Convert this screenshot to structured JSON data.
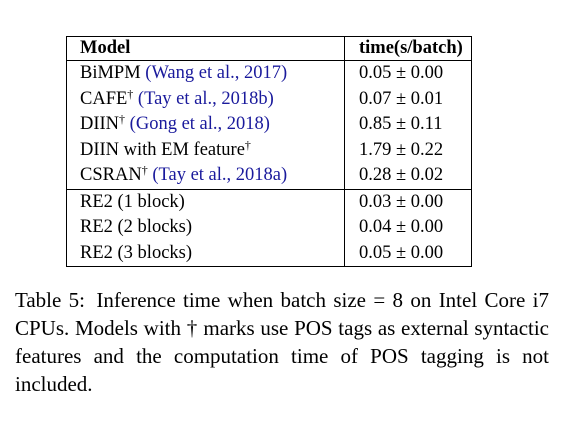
{
  "table": {
    "header": {
      "model": "Model",
      "time": "time(s/batch)"
    },
    "rows": [
      {
        "name": "BiMPM",
        "dagger": "",
        "cite": "(Wang et al., 2017)",
        "time": "0.05 ± 0.00"
      },
      {
        "name": "CAFE",
        "dagger": "†",
        "cite": "(Tay et al., 2018b)",
        "time": "0.07 ± 0.01"
      },
      {
        "name": "DIIN",
        "dagger": "†",
        "cite": "(Gong et al., 2018)",
        "time": "0.85 ± 0.11"
      },
      {
        "name": "DIIN with EM feature",
        "dagger": "†",
        "cite": "",
        "time": "1.79 ± 0.22"
      },
      {
        "name": "CSRAN",
        "dagger": "†",
        "cite": "(Tay et al., 2018a)",
        "time": "0.28 ± 0.02"
      },
      {
        "name": "RE2 (1 block)",
        "dagger": "",
        "cite": "",
        "time": "0.03 ± 0.00"
      },
      {
        "name": "RE2 (2 blocks)",
        "dagger": "",
        "cite": "",
        "time": "0.04 ± 0.00"
      },
      {
        "name": "RE2 (3 blocks)",
        "dagger": "",
        "cite": "",
        "time": "0.05 ± 0.00"
      }
    ]
  },
  "caption": {
    "label": "Table 5:",
    "text": "Inference time when batch size = 8 on Intel Core i7 CPUs. Models with † marks use POS tags as external syntactic features and the computation time of POS tagging is not included."
  },
  "colors": {
    "citation": "#1a1a9c",
    "text": "#000000",
    "background": "#ffffff"
  }
}
